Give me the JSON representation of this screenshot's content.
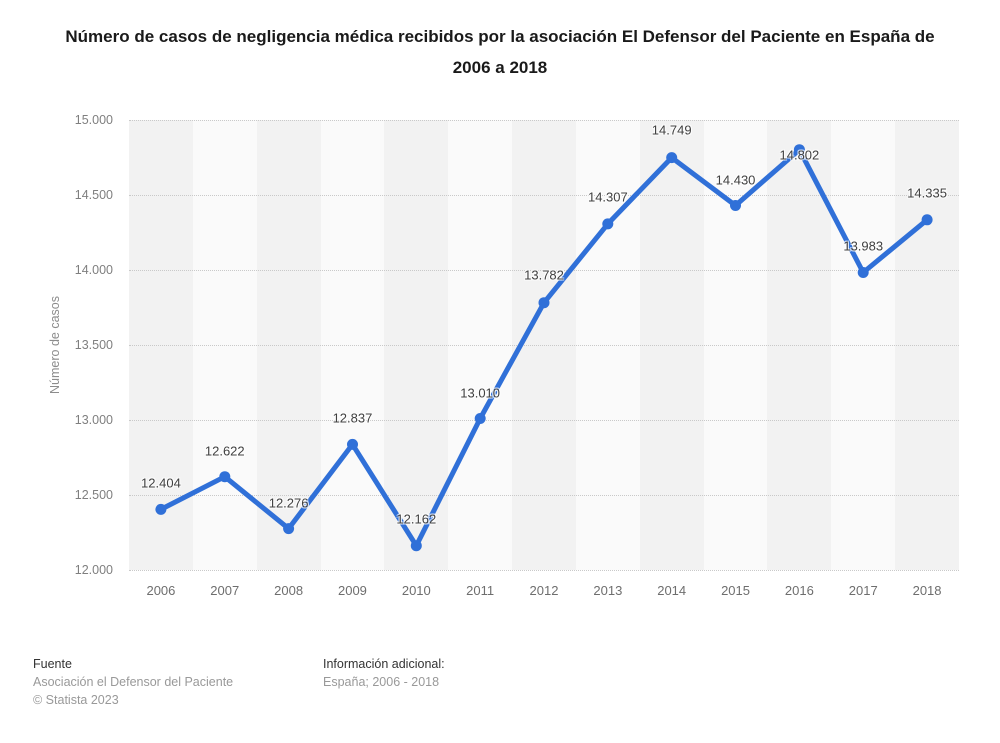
{
  "chart_data": {
    "type": "line",
    "title": "Número de casos de negligencia médica recibidos por la asociación El Defensor del Paciente en España de 2006 a 2018",
    "ylabel": "Número de casos",
    "x": [
      2006,
      2007,
      2008,
      2009,
      2010,
      2011,
      2012,
      2013,
      2014,
      2015,
      2016,
      2017,
      2018
    ],
    "values": [
      12404,
      12622,
      12276,
      12837,
      12162,
      13010,
      13782,
      14307,
      14749,
      14430,
      14802,
      13983,
      14335
    ],
    "point_labels": [
      "12.404",
      "12.622",
      "12.276",
      "12.837",
      "12.162",
      "13.010",
      "13.782",
      "14.307",
      "14.749",
      "14.430",
      "14.802",
      "13.983",
      "14.335"
    ],
    "xtick_labels": [
      "2006",
      "2007",
      "2008",
      "2009",
      "2010",
      "2011",
      "2012",
      "2013",
      "2014",
      "2015",
      "2016",
      "2017",
      "2018"
    ],
    "ytick_labels": [
      "15.000",
      "14.500",
      "14.000",
      "13.500",
      "13.000",
      "12.500",
      "12.000"
    ],
    "ylim": [
      12000,
      15000
    ],
    "ytick_step": 500,
    "grid": "horizontal-dotted",
    "legend": "none",
    "plot_bands": "alternating-vertical-per-year",
    "label_dy": [
      -26,
      -26,
      -26,
      -26,
      -27,
      -26,
      -28,
      -27,
      -28,
      -26,
      5,
      -27,
      -27
    ],
    "colors": {
      "line": "#3070d8",
      "band_dark": "#f2f2f2",
      "band_light": "#fafafa",
      "grid": "#c9c9c9",
      "tick_text": "#7f7f7f",
      "data_label": "#404040",
      "title_text": "#1a1a1a"
    }
  },
  "footer": {
    "source_heading": "Fuente",
    "source_name": "Asociación el Defensor del Paciente",
    "copyright": "© Statista 2023",
    "info_heading": "Información adicional:",
    "info_text": "España; 2006 - 2018"
  }
}
